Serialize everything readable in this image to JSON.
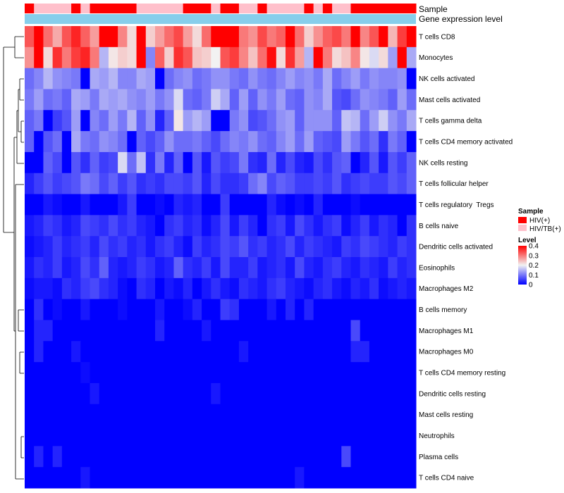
{
  "chart_data": {
    "type": "heatmap",
    "annotation_labels": {
      "sample": "Sample",
      "expression": "Gene expression level"
    },
    "rows": [
      "T cells CD8",
      "Monocytes",
      "NK cells activated",
      "Mast cells activated",
      "T cells gamma delta",
      "T cells CD4 memory activated",
      "NK cells resting",
      "T cells follicular helper",
      "T cells regulatory  Tregs",
      "B cells naive",
      "Dendritic cells activated",
      "Eosinophils",
      "Macrophages M2",
      "B cells memory",
      "Macrophages M1",
      "Macrophages M0",
      "T cells CD4 memory resting",
      "Dendritic cells resting",
      "Mast cells resting",
      "Neutrophils",
      "Plasma cells",
      "T cells CD4 naive"
    ],
    "sample_groups": [
      "HIV(+)",
      "HIV/TB(+)",
      "HIV/TB(+)",
      "HIV/TB(+)",
      "HIV/TB(+)",
      "HIV(+)",
      "HIV/TB(+)",
      "HIV(+)",
      "HIV(+)",
      "HIV(+)",
      "HIV(+)",
      "HIV(+)",
      "HIV/TB(+)",
      "HIV/TB(+)",
      "HIV/TB(+)",
      "HIV/TB(+)",
      "HIV/TB(+)",
      "HIV(+)",
      "HIV(+)",
      "HIV(+)",
      "HIV/TB(+)",
      "HIV(+)",
      "HIV(+)",
      "HIV/TB(+)",
      "HIV/TB(+)",
      "HIV(+)",
      "HIV/TB(+)",
      "HIV/TB(+)",
      "HIV/TB(+)",
      "HIV/TB(+)",
      "HIV(+)",
      "HIV/TB(+)",
      "HIV(+)",
      "HIV/TB(+)",
      "HIV/TB(+)",
      "HIV(+)",
      "HIV(+)",
      "HIV(+)",
      "HIV(+)",
      "HIV(+)",
      "HIV(+)",
      "HIV(+)"
    ],
    "legend": {
      "sample_title": "Sample",
      "groups": [
        "HIV(+)",
        "HIV/TB(+)"
      ],
      "group_colors": [
        "#ff0000",
        "#ffc0cb"
      ],
      "level_title": "Level",
      "level_ticks": [
        "0.4",
        "0.3",
        "0.2",
        "0.1",
        "0"
      ],
      "level_range": [
        0,
        0.4
      ]
    },
    "colors": {
      "low": "#0000ff",
      "mid": "#f2f2f2",
      "high": "#ff0000",
      "expression_bar": "#87ceeb"
    },
    "values": [
      [
        0.33,
        0.4,
        0.31,
        0.26,
        0.33,
        0.37,
        0.32,
        0.27,
        0.4,
        0.4,
        0.29,
        0.22,
        0.4,
        0.23,
        0.27,
        0.31,
        0.34,
        0.27,
        0.22,
        0.31,
        0.4,
        0.4,
        0.4,
        0.3,
        0.28,
        0.34,
        0.3,
        0.32,
        0.4,
        0.31,
        0.23,
        0.28,
        0.32,
        0.34,
        0.3,
        0.4,
        0.29,
        0.33,
        0.4,
        0.25,
        0.35,
        0.4
      ],
      [
        0.28,
        0.4,
        0.22,
        0.36,
        0.3,
        0.35,
        0.37,
        0.3,
        0.15,
        0.21,
        0.23,
        0.22,
        0.4,
        0.11,
        0.32,
        0.23,
        0.36,
        0.33,
        0.24,
        0.23,
        0.2,
        0.33,
        0.35,
        0.29,
        0.24,
        0.31,
        0.39,
        0.22,
        0.36,
        0.27,
        0.15,
        0.4,
        0.3,
        0.22,
        0.24,
        0.29,
        0.21,
        0.18,
        0.22,
        0.13,
        0.4,
        0.14
      ],
      [
        0.09,
        0.11,
        0.15,
        0.12,
        0.11,
        0.1,
        0.0,
        0.14,
        0.13,
        0.15,
        0.11,
        0.11,
        0.14,
        0.13,
        0.0,
        0.09,
        0.11,
        0.12,
        0.09,
        0.1,
        0.12,
        0.12,
        0.1,
        0.09,
        0.12,
        0.1,
        0.09,
        0.11,
        0.13,
        0.11,
        0.12,
        0.1,
        0.14,
        0.09,
        0.11,
        0.13,
        0.1,
        0.12,
        0.11,
        0.11,
        0.12,
        0.0
      ],
      [
        0.1,
        0.13,
        0.09,
        0.1,
        0.08,
        0.14,
        0.13,
        0.1,
        0.14,
        0.13,
        0.14,
        0.12,
        0.11,
        0.13,
        0.1,
        0.12,
        0.18,
        0.09,
        0.08,
        0.1,
        0.17,
        0.14,
        0.08,
        0.13,
        0.08,
        0.12,
        0.1,
        0.13,
        0.09,
        0.08,
        0.12,
        0.11,
        0.14,
        0.07,
        0.06,
        0.09,
        0.12,
        0.11,
        0.1,
        0.08,
        0.13,
        0.09
      ],
      [
        0.08,
        0.1,
        0.0,
        0.05,
        0.07,
        0.13,
        0.0,
        0.11,
        0.09,
        0.13,
        0.1,
        0.15,
        0.08,
        0.12,
        0.03,
        0.08,
        0.21,
        0.13,
        0.15,
        0.13,
        0.0,
        0.0,
        0.1,
        0.12,
        0.06,
        0.07,
        0.09,
        0.12,
        0.13,
        0.08,
        0.12,
        0.12,
        0.12,
        0.08,
        0.16,
        0.15,
        0.09,
        0.13,
        0.17,
        0.12,
        0.1,
        0.14
      ],
      [
        0.08,
        0.0,
        0.07,
        0.09,
        0.0,
        0.14,
        0.1,
        0.09,
        0.12,
        0.11,
        0.09,
        0.0,
        0.08,
        0.06,
        0.08,
        0.12,
        0.09,
        0.09,
        0.1,
        0.08,
        0.06,
        0.09,
        0.11,
        0.1,
        0.12,
        0.09,
        0.08,
        0.11,
        0.13,
        0.09,
        0.13,
        0.08,
        0.07,
        0.06,
        0.13,
        0.1,
        0.07,
        0.09,
        0.04,
        0.1,
        0.08,
        0.0
      ],
      [
        0.0,
        0.0,
        0.08,
        0.06,
        0.0,
        0.07,
        0.04,
        0.08,
        0.05,
        0.06,
        0.18,
        0.09,
        0.16,
        0.04,
        0.1,
        0.03,
        0.08,
        0.0,
        0.07,
        0.02,
        0.07,
        0.05,
        0.06,
        0.1,
        0.04,
        0.03,
        0.09,
        0.03,
        0.06,
        0.03,
        0.02,
        0.06,
        0.04,
        0.07,
        0.08,
        0.0,
        0.03,
        0.07,
        0.02,
        0.07,
        0.05,
        0.08
      ],
      [
        0.03,
        0.05,
        0.07,
        0.05,
        0.06,
        0.07,
        0.1,
        0.09,
        0.06,
        0.08,
        0.05,
        0.07,
        0.04,
        0.05,
        0.04,
        0.06,
        0.06,
        0.05,
        0.07,
        0.03,
        0.06,
        0.04,
        0.04,
        0.05,
        0.09,
        0.11,
        0.06,
        0.08,
        0.07,
        0.05,
        0.05,
        0.06,
        0.05,
        0.07,
        0.04,
        0.05,
        0.06,
        0.05,
        0.05,
        0.07,
        0.06,
        0.08
      ],
      [
        0.0,
        0.0,
        0.02,
        0.01,
        0.0,
        0.0,
        0.02,
        0.0,
        0.0,
        0.0,
        0.02,
        0.05,
        0.0,
        0.0,
        0.01,
        0.0,
        0.03,
        0.02,
        0.03,
        0.0,
        0.0,
        0.05,
        0.0,
        0.0,
        0.0,
        0.0,
        0.03,
        0.01,
        0.0,
        0.01,
        0.0,
        0.03,
        0.0,
        0.0,
        0.0,
        0.01,
        0.0,
        0.0,
        0.0,
        0.0,
        0.0,
        0.0
      ],
      [
        0.02,
        0.03,
        0.05,
        0.04,
        0.02,
        0.03,
        0.06,
        0.05,
        0.04,
        0.06,
        0.04,
        0.05,
        0.03,
        0.02,
        0.0,
        0.04,
        0.05,
        0.03,
        0.04,
        0.01,
        0.03,
        0.06,
        0.02,
        0.05,
        0.03,
        0.0,
        0.04,
        0.05,
        0.02,
        0.06,
        0.04,
        0.02,
        0.04,
        0.05,
        0.01,
        0.03,
        0.05,
        0.02,
        0.04,
        0.03,
        0.0,
        0.04
      ],
      [
        0.01,
        0.02,
        0.03,
        0.05,
        0.03,
        0.04,
        0.05,
        0.03,
        0.06,
        0.04,
        0.05,
        0.03,
        0.04,
        0.02,
        0.04,
        0.05,
        0.03,
        0.01,
        0.05,
        0.03,
        0.04,
        0.06,
        0.05,
        0.07,
        0.04,
        0.05,
        0.03,
        0.04,
        0.06,
        0.03,
        0.05,
        0.04,
        0.03,
        0.02,
        0.05,
        0.04,
        0.06,
        0.05,
        0.04,
        0.03,
        0.05,
        0.04
      ],
      [
        0.02,
        0.04,
        0.03,
        0.05,
        0.02,
        0.03,
        0.06,
        0.04,
        0.08,
        0.03,
        0.02,
        0.03,
        0.05,
        0.04,
        0.02,
        0.03,
        0.08,
        0.04,
        0.03,
        0.05,
        0.02,
        0.06,
        0.03,
        0.03,
        0.05,
        0.02,
        0.03,
        0.04,
        0.02,
        0.06,
        0.03,
        0.02,
        0.04,
        0.05,
        0.03,
        0.02,
        0.04,
        0.03,
        0.02,
        0.05,
        0.03,
        0.04
      ],
      [
        0.01,
        0.02,
        0.02,
        0.01,
        0.04,
        0.03,
        0.05,
        0.06,
        0.04,
        0.03,
        0.01,
        0.0,
        0.04,
        0.03,
        0.0,
        0.02,
        0.01,
        0.03,
        0.0,
        0.02,
        0.04,
        0.02,
        0.01,
        0.04,
        0.03,
        0.02,
        0.04,
        0.05,
        0.03,
        0.02,
        0.01,
        0.03,
        0.04,
        0.02,
        0.01,
        0.03,
        0.02,
        0.04,
        0.01,
        0.02,
        0.03,
        0.02
      ],
      [
        0.0,
        0.04,
        0.0,
        0.01,
        0.0,
        0.0,
        0.02,
        0.0,
        0.0,
        0.0,
        0.01,
        0.0,
        0.0,
        0.0,
        0.02,
        0.0,
        0.0,
        0.01,
        0.03,
        0.0,
        0.0,
        0.05,
        0.04,
        0.0,
        0.0,
        0.0,
        0.02,
        0.0,
        0.03,
        0.0,
        0.03,
        0.0,
        0.0,
        0.0,
        0.0,
        0.0,
        0.0,
        0.0,
        0.0,
        0.0,
        0.0,
        0.0
      ],
      [
        0.0,
        0.03,
        0.03,
        0.0,
        0.0,
        0.0,
        0.0,
        0.0,
        0.0,
        0.0,
        0.0,
        0.0,
        0.0,
        0.0,
        0.03,
        0.0,
        0.0,
        0.0,
        0.0,
        0.02,
        0.0,
        0.0,
        0.0,
        0.0,
        0.0,
        0.0,
        0.0,
        0.0,
        0.0,
        0.0,
        0.0,
        0.0,
        0.0,
        0.0,
        0.0,
        0.06,
        0.0,
        0.0,
        0.0,
        0.0,
        0.0,
        0.0
      ],
      [
        0.0,
        0.03,
        0.0,
        0.0,
        0.0,
        0.02,
        0.0,
        0.0,
        0.0,
        0.0,
        0.0,
        0.0,
        0.0,
        0.0,
        0.0,
        0.0,
        0.0,
        0.0,
        0.0,
        0.0,
        0.0,
        0.0,
        0.0,
        0.02,
        0.0,
        0.0,
        0.0,
        0.0,
        0.0,
        0.0,
        0.0,
        0.0,
        0.0,
        0.0,
        0.0,
        0.03,
        0.03,
        0.0,
        0.0,
        0.0,
        0.0,
        0.0
      ],
      [
        0.0,
        0.0,
        0.0,
        0.0,
        0.0,
        0.0,
        0.01,
        0.0,
        0.0,
        0.0,
        0.0,
        0.0,
        0.0,
        0.0,
        0.0,
        0.0,
        0.0,
        0.0,
        0.0,
        0.0,
        0.0,
        0.0,
        0.0,
        0.0,
        0.0,
        0.0,
        0.0,
        0.0,
        0.0,
        0.0,
        0.0,
        0.0,
        0.0,
        0.0,
        0.0,
        0.0,
        0.0,
        0.0,
        0.0,
        0.0,
        0.0,
        0.0
      ],
      [
        0.0,
        0.0,
        0.0,
        0.0,
        0.0,
        0.0,
        0.0,
        0.02,
        0.0,
        0.0,
        0.0,
        0.0,
        0.0,
        0.0,
        0.0,
        0.0,
        0.0,
        0.0,
        0.0,
        0.0,
        0.02,
        0.0,
        0.0,
        0.0,
        0.0,
        0.0,
        0.0,
        0.0,
        0.0,
        0.0,
        0.0,
        0.0,
        0.0,
        0.0,
        0.0,
        0.0,
        0.0,
        0.0,
        0.0,
        0.0,
        0.0,
        0.0
      ],
      [
        0.0,
        0.0,
        0.0,
        0.0,
        0.0,
        0.0,
        0.0,
        0.0,
        0.0,
        0.0,
        0.0,
        0.0,
        0.0,
        0.0,
        0.0,
        0.0,
        0.0,
        0.0,
        0.0,
        0.0,
        0.0,
        0.0,
        0.0,
        0.0,
        0.0,
        0.0,
        0.0,
        0.0,
        0.0,
        0.0,
        0.0,
        0.0,
        0.0,
        0.0,
        0.0,
        0.0,
        0.0,
        0.0,
        0.0,
        0.0,
        0.0,
        0.0
      ],
      [
        0.0,
        0.0,
        0.0,
        0.0,
        0.0,
        0.0,
        0.0,
        0.0,
        0.0,
        0.0,
        0.0,
        0.0,
        0.0,
        0.0,
        0.0,
        0.0,
        0.0,
        0.0,
        0.0,
        0.0,
        0.0,
        0.0,
        0.0,
        0.0,
        0.0,
        0.0,
        0.0,
        0.0,
        0.0,
        0.0,
        0.0,
        0.0,
        0.0,
        0.0,
        0.0,
        0.0,
        0.0,
        0.0,
        0.0,
        0.0,
        0.0,
        0.0
      ],
      [
        0.0,
        0.03,
        0.0,
        0.03,
        0.0,
        0.0,
        0.0,
        0.0,
        0.0,
        0.0,
        0.0,
        0.0,
        0.0,
        0.0,
        0.0,
        0.0,
        0.0,
        0.0,
        0.0,
        0.0,
        0.0,
        0.0,
        0.0,
        0.0,
        0.0,
        0.0,
        0.0,
        0.0,
        0.0,
        0.0,
        0.0,
        0.0,
        0.0,
        0.0,
        0.06,
        0.0,
        0.0,
        0.0,
        0.0,
        0.0,
        0.0,
        0.0
      ],
      [
        0.0,
        0.0,
        0.0,
        0.0,
        0.0,
        0.0,
        0.02,
        0.0,
        0.0,
        0.0,
        0.0,
        0.0,
        0.0,
        0.0,
        0.0,
        0.0,
        0.0,
        0.0,
        0.0,
        0.0,
        0.0,
        0.0,
        0.0,
        0.0,
        0.0,
        0.0,
        0.0,
        0.0,
        0.0,
        0.02,
        0.0,
        0.0,
        0.0,
        0.0,
        0.0,
        0.0,
        0.0,
        0.0,
        0.0,
        0.0,
        0.0,
        0.0
      ]
    ]
  }
}
